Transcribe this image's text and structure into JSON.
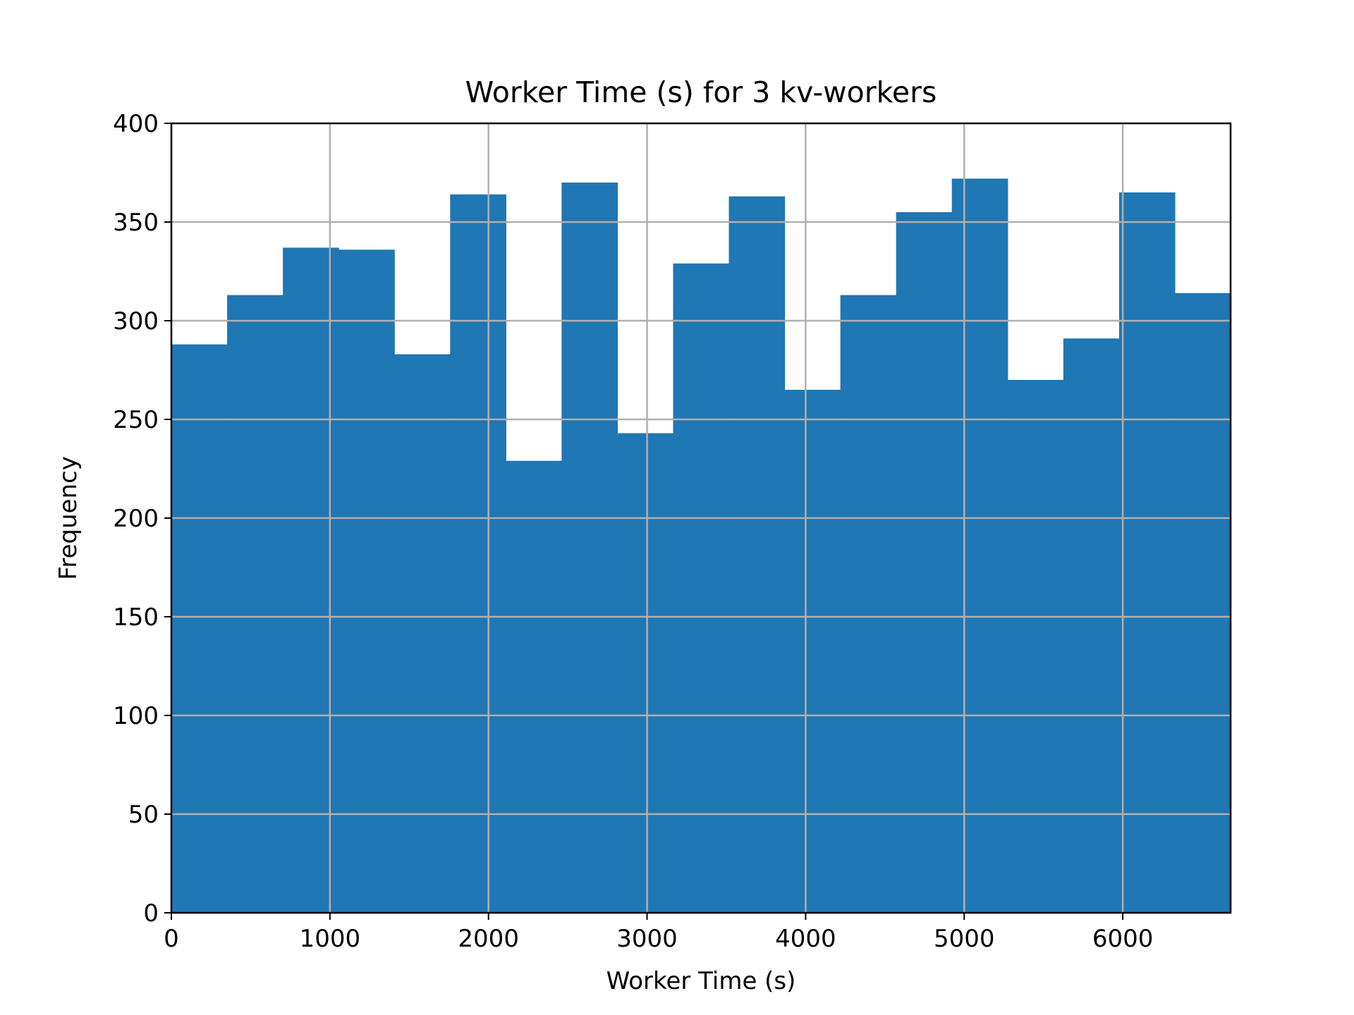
{
  "chart_data": {
    "type": "histogram",
    "title": "Worker Time (s) for 3 kv-workers",
    "xlabel": "Worker Time (s)",
    "ylabel": "Frequency",
    "xlim": [
      0,
      6680
    ],
    "ylim": [
      0,
      400
    ],
    "xticks": [
      0,
      1000,
      2000,
      3000,
      4000,
      5000,
      6000
    ],
    "yticks": [
      0,
      50,
      100,
      150,
      200,
      250,
      300,
      350,
      400
    ],
    "grid": true,
    "bar_color": "#1f77b4",
    "bins": [
      {
        "start": 0,
        "end": 351.6,
        "count": 288
      },
      {
        "start": 351.6,
        "end": 703.2,
        "count": 313
      },
      {
        "start": 703.2,
        "end": 1054.7,
        "count": 337
      },
      {
        "start": 1054.7,
        "end": 1406.3,
        "count": 336
      },
      {
        "start": 1406.3,
        "end": 1757.9,
        "count": 283
      },
      {
        "start": 1757.9,
        "end": 2109.5,
        "count": 364
      },
      {
        "start": 2109.5,
        "end": 2461.1,
        "count": 229
      },
      {
        "start": 2461.1,
        "end": 2812.6,
        "count": 370
      },
      {
        "start": 2812.6,
        "end": 3164.2,
        "count": 243
      },
      {
        "start": 3164.2,
        "end": 3515.8,
        "count": 329
      },
      {
        "start": 3515.8,
        "end": 3867.4,
        "count": 363
      },
      {
        "start": 3867.4,
        "end": 4218.9,
        "count": 265
      },
      {
        "start": 4218.9,
        "end": 4570.5,
        "count": 313
      },
      {
        "start": 4570.5,
        "end": 4922.1,
        "count": 355
      },
      {
        "start": 4922.1,
        "end": 5273.7,
        "count": 372
      },
      {
        "start": 5273.7,
        "end": 5625.3,
        "count": 270
      },
      {
        "start": 5625.3,
        "end": 5976.8,
        "count": 291
      },
      {
        "start": 5976.8,
        "end": 6328.4,
        "count": 365
      },
      {
        "start": 6328.4,
        "end": 6680,
        "count": 314
      }
    ]
  }
}
